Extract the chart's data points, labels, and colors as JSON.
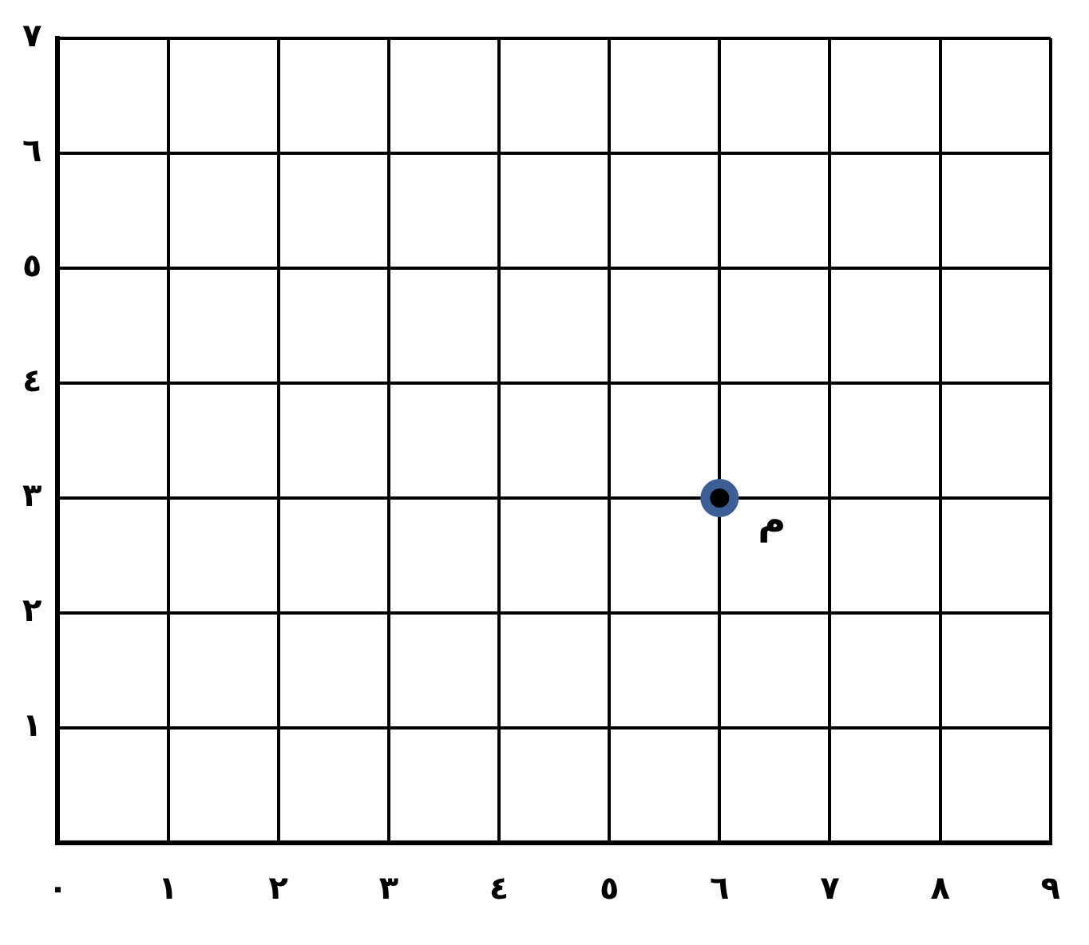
{
  "chart_data": {
    "type": "scatter",
    "x": [
      6
    ],
    "values": [
      3
    ],
    "color": "#3d5e94",
    "marker": "circle",
    "xlim": [
      0,
      9
    ],
    "ylim": [
      0,
      7
    ],
    "xticks": [
      {
        "value": 0,
        "label": "٠"
      },
      {
        "value": 1,
        "label": "١"
      },
      {
        "value": 2,
        "label": "٢"
      },
      {
        "value": 3,
        "label": "٣"
      },
      {
        "value": 4,
        "label": "٤"
      },
      {
        "value": 5,
        "label": "٥"
      },
      {
        "value": 6,
        "label": "٦"
      },
      {
        "value": 7,
        "label": "٧"
      },
      {
        "value": 8,
        "label": "٨"
      },
      {
        "value": 9,
        "label": "٩"
      }
    ],
    "yticks": [
      {
        "value": 0,
        "label": null
      },
      {
        "value": 1,
        "label": "١"
      },
      {
        "value": 2,
        "label": "٢"
      },
      {
        "value": 3,
        "label": "٣"
      },
      {
        "value": 4,
        "label": "٤"
      },
      {
        "value": 5,
        "label": "٥"
      },
      {
        "value": 6,
        "label": "٦"
      },
      {
        "value": 7,
        "label": "٧"
      }
    ],
    "grid": true,
    "legend": false,
    "annotations": [
      {
        "text": "م",
        "x": 6,
        "y": 3
      }
    ]
  }
}
